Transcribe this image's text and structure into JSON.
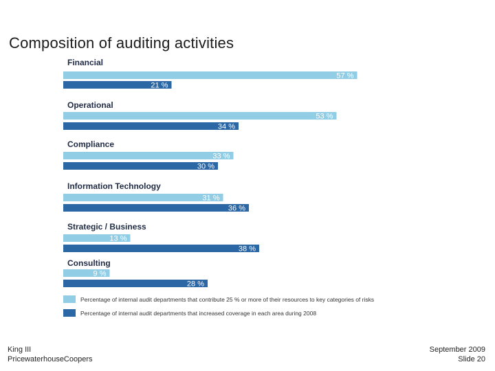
{
  "title": "Composition of auditing activities",
  "chart_data": {
    "type": "bar",
    "orientation": "horizontal",
    "categories": [
      "Financial",
      "Operational",
      "Compliance",
      "Information Technology",
      "Strategic / Business",
      "Consulting"
    ],
    "series": [
      {
        "name": "Percentage of internal audit departments that contribute 25 % or more of their resources  to key categories of risks",
        "color": "#92cde6",
        "label_color": "#ffffff",
        "values": [
          57,
          53,
          33,
          31,
          13,
          9
        ],
        "labels": [
          "57 %",
          "53 %",
          "33 %",
          "31 %",
          "13 %",
          "9 %"
        ]
      },
      {
        "name": "Percentage of internal audit departments that increased coverage in each area during 2008",
        "color": "#2b66a5",
        "label_color": "#ffffff",
        "values": [
          21,
          34,
          30,
          36,
          38,
          28
        ],
        "labels": [
          "21 %",
          "34 %",
          "30 %",
          "36 %",
          "38 %",
          "28 %"
        ]
      }
    ],
    "xlim": [
      0,
      60
    ],
    "grid": false,
    "legend": "bottom"
  },
  "footer": {
    "left_line1": "King III",
    "left_line2": "PricewaterhouseCoopers",
    "right_line1": "September 2009",
    "right_line2": "Slide 20"
  }
}
